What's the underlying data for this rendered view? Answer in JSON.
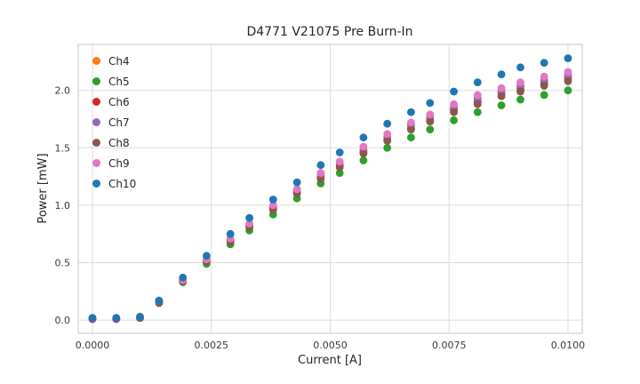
{
  "chart_data": {
    "type": "scatter",
    "title": "D4771 V21075 Pre Burn-In",
    "xlabel": "Current [A]",
    "ylabel": "Power [mW]",
    "grid": true,
    "legend_position": "upper-left",
    "background": "#ffffff",
    "grid_color": "#dcdcdc",
    "spine_color": "#cfcfcf",
    "xlim": [
      -0.0003,
      0.0103
    ],
    "ylim": [
      -0.115,
      2.4
    ],
    "xticks": {
      "values": [
        0.0,
        0.0025,
        0.005,
        0.0075,
        0.01
      ],
      "labels": [
        "0.0000",
        "0.0025",
        "0.0050",
        "0.0075",
        "0.0100"
      ]
    },
    "yticks": {
      "values": [
        0.0,
        0.5,
        1.0,
        1.5,
        2.0
      ],
      "labels": [
        "0.0",
        "0.5",
        "1.0",
        "1.5",
        "2.0"
      ]
    },
    "x": [
      0.0,
      0.0005,
      0.001,
      0.0014,
      0.0019,
      0.0024,
      0.0029,
      0.0033,
      0.0038,
      0.0043,
      0.0048,
      0.0052,
      0.0057,
      0.0062,
      0.0067,
      0.0071,
      0.0076,
      0.0081,
      0.0086,
      0.009,
      0.0095,
      0.01
    ],
    "series": [
      {
        "name": "Ch4",
        "color": "#ff7f0e",
        "values": [
          0.01,
          0.01,
          0.02,
          0.16,
          0.35,
          0.52,
          0.7,
          0.82,
          0.98,
          1.12,
          1.26,
          1.36,
          1.48,
          1.59,
          1.69,
          1.76,
          1.84,
          1.92,
          1.98,
          2.03,
          2.08,
          2.12
        ]
      },
      {
        "name": "Ch5",
        "color": "#2ca02c",
        "values": [
          0.01,
          0.01,
          0.02,
          0.15,
          0.33,
          0.49,
          0.66,
          0.78,
          0.92,
          1.06,
          1.19,
          1.28,
          1.39,
          1.5,
          1.59,
          1.66,
          1.74,
          1.81,
          1.87,
          1.92,
          1.96,
          2.0
        ]
      },
      {
        "name": "Ch6",
        "color": "#d62728",
        "values": [
          0.01,
          0.01,
          0.02,
          0.16,
          0.34,
          0.52,
          0.69,
          0.82,
          0.97,
          1.11,
          1.25,
          1.35,
          1.46,
          1.57,
          1.67,
          1.74,
          1.83,
          1.9,
          1.97,
          2.01,
          2.06,
          2.1
        ]
      },
      {
        "name": "Ch7",
        "color": "#9467bd",
        "values": [
          0.01,
          0.01,
          0.02,
          0.16,
          0.35,
          0.53,
          0.7,
          0.83,
          0.98,
          1.13,
          1.26,
          1.37,
          1.48,
          1.59,
          1.7,
          1.77,
          1.85,
          1.93,
          1.99,
          2.04,
          2.09,
          2.13
        ]
      },
      {
        "name": "Ch8",
        "color": "#8c564b",
        "values": [
          0.01,
          0.01,
          0.02,
          0.15,
          0.34,
          0.51,
          0.68,
          0.81,
          0.96,
          1.1,
          1.23,
          1.33,
          1.45,
          1.56,
          1.66,
          1.73,
          1.81,
          1.88,
          1.95,
          1.99,
          2.04,
          2.08
        ]
      },
      {
        "name": "Ch9",
        "color": "#e377c2",
        "values": [
          0.02,
          0.02,
          0.03,
          0.17,
          0.35,
          0.53,
          0.71,
          0.84,
          1.0,
          1.14,
          1.28,
          1.38,
          1.51,
          1.62,
          1.72,
          1.79,
          1.88,
          1.96,
          2.02,
          2.07,
          2.12,
          2.16
        ]
      },
      {
        "name": "Ch10",
        "color": "#1f77b4",
        "values": [
          0.02,
          0.02,
          0.03,
          0.17,
          0.37,
          0.56,
          0.75,
          0.89,
          1.05,
          1.2,
          1.35,
          1.46,
          1.59,
          1.71,
          1.81,
          1.89,
          1.99,
          2.07,
          2.14,
          2.2,
          2.24,
          2.28
        ]
      }
    ]
  }
}
